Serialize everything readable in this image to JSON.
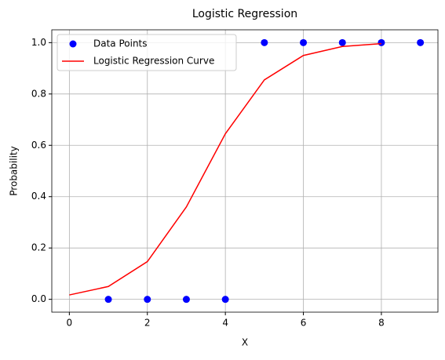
{
  "chart_data": {
    "type": "scatter",
    "title": "Logistic Regression",
    "x_label": "X",
    "y_label": "Probability",
    "xlim": [
      -0.45,
      9.45
    ],
    "ylim": [
      -0.05,
      1.05
    ],
    "xticks": [
      0,
      2,
      4,
      6,
      8
    ],
    "yticks": [
      {
        "value": 0,
        "label": "0.0"
      },
      {
        "value": 0.2,
        "label": "0.2"
      },
      {
        "value": 0.4,
        "label": "0.4"
      },
      {
        "value": 0.6,
        "label": "0.6"
      },
      {
        "value": 0.8,
        "label": "0.8"
      },
      {
        "value": 1,
        "label": "1.0"
      }
    ],
    "grid": true,
    "legend": "upper left",
    "series": [
      {
        "name": "Data Points",
        "type": "scatter",
        "color": "#0000ff",
        "x": [
          1,
          2,
          3,
          4,
          5,
          6,
          7,
          8,
          9
        ],
        "values": [
          0,
          0,
          0,
          0,
          1,
          1,
          1,
          1,
          1
        ]
      },
      {
        "name": "Logistic Regression Curve",
        "type": "line",
        "color": "#ff0000",
        "x": [
          0,
          1,
          2,
          3,
          4,
          5,
          6,
          7,
          8
        ],
        "values": [
          0.017,
          0.05,
          0.147,
          0.36,
          0.645,
          0.855,
          0.95,
          0.985,
          0.996
        ]
      }
    ]
  }
}
